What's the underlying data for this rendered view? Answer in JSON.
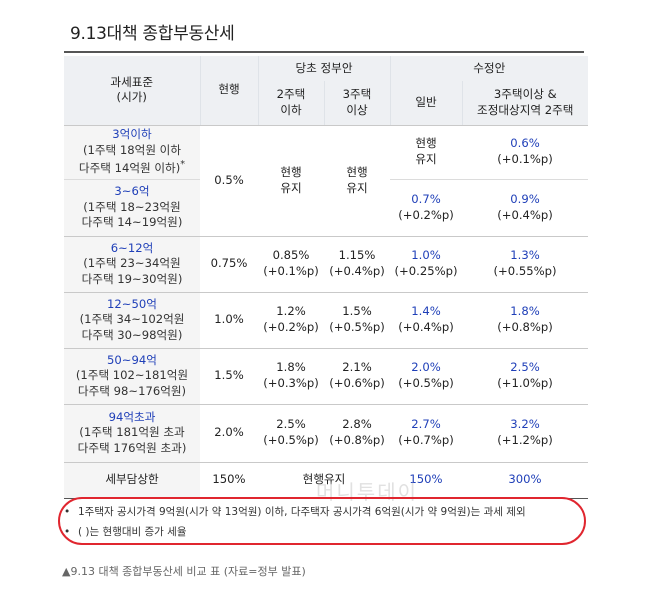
{
  "title": "9.13대책  종합부동산세",
  "header": {
    "tax_base": "과세표준",
    "tax_base_sub": "(시가)",
    "current": "현행",
    "gov_plan": "당초 정부안",
    "revised": "수정안",
    "two_house_below": "2주택\n이하",
    "three_house_above": "3주택\n이상",
    "general": "일반",
    "multi_house": "3주택이상 &\n조정대상지역 2주택"
  },
  "rows": [
    {
      "range": "3억이하",
      "desc": "(1주택 18억원 이하\n다주택 14억원 이하)",
      "mark": "*",
      "current": "0.5%",
      "g2": "현행\n유지",
      "g3": "현행\n유지",
      "gen": "현행\n유지",
      "multi": "0.6%",
      "multi_p": "(+0.1%p)"
    },
    {
      "range": "3~6억",
      "desc": "(1주택 18~23억원\n다주택 14~19억원)",
      "gen": "0.7%",
      "gen_p": "(+0.2%p)",
      "multi": "0.9%",
      "multi_p": "(+0.4%p)"
    },
    {
      "range": "6~12억",
      "desc": "(1주택 23~34억원\n다주택 19~30억원)",
      "current": "0.75%",
      "g2": "0.85%",
      "g2_p": "(+0.1%p)",
      "g3": "1.15%",
      "g3_p": "(+0.4%p)",
      "gen": "1.0%",
      "gen_p": "(+0.25%p)",
      "multi": "1.3%",
      "multi_p": "(+0.55%p)"
    },
    {
      "range": "12~50억",
      "desc": "(1주택 34~102억원\n다주택 30~98억원)",
      "current": "1.0%",
      "g2": "1.2%",
      "g2_p": "(+0.2%p)",
      "g3": "1.5%",
      "g3_p": "(+0.5%p)",
      "gen": "1.4%",
      "gen_p": "(+0.4%p)",
      "multi": "1.8%",
      "multi_p": "(+0.8%p)"
    },
    {
      "range": "50~94억",
      "desc": "(1주택 102~181억원\n다주택 98~176억원)",
      "current": "1.5%",
      "g2": "1.8%",
      "g2_p": "(+0.3%p)",
      "g3": "2.1%",
      "g3_p": "(+0.6%p)",
      "gen": "2.0%",
      "gen_p": "(+0.5%p)",
      "multi": "2.5%",
      "multi_p": "(+1.0%p)"
    },
    {
      "range": "94억초과",
      "desc": "(1주택 181억원 초과\n다주택 176억원 초과)",
      "current": "2.0%",
      "g2": "2.5%",
      "g2_p": "(+0.5%p)",
      "g3": "2.8%",
      "g3_p": "(+0.8%p)",
      "gen": "2.7%",
      "gen_p": "(+0.7%p)",
      "multi": "3.2%",
      "multi_p": "(+1.2%p)"
    }
  ],
  "burden": {
    "label": "세부담상한",
    "current": "150%",
    "gov": "현행유지",
    "gen": "150%",
    "multi": "300%"
  },
  "notes": [
    "1주택자 공시가격 9억원(시가 약 13억원) 이하, 다주택자 공시가격 6억원(시가 약 9억원)는 과세 제외",
    "(   )는 현행대비 증가 세율"
  ],
  "bullet": "•",
  "watermark": "머니투데이",
  "caption": "▲9.13 대책 종합부동산세 비교 표 (자료=정부 발표)",
  "colors": {
    "blue_text": "#1f3fb8",
    "header_bg": "#eef0f3",
    "oval": "#e0262f"
  }
}
